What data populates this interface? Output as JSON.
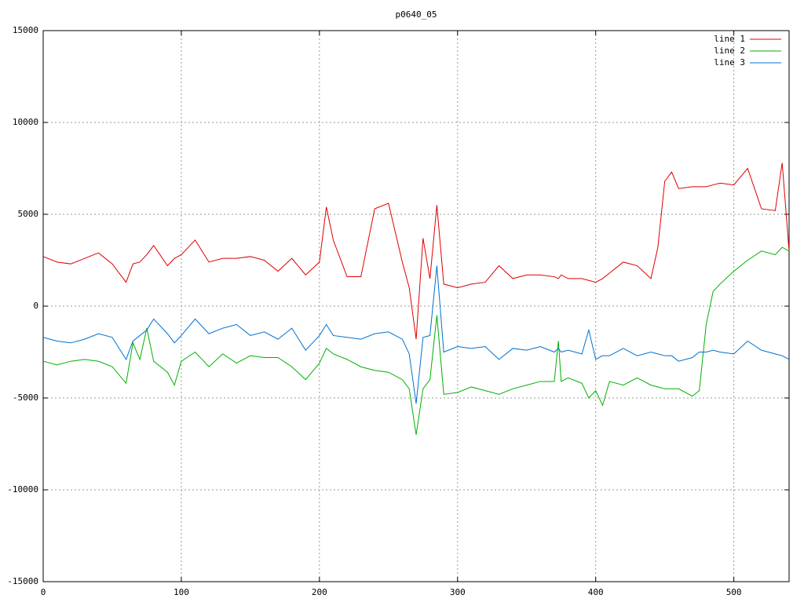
{
  "chart_data": {
    "type": "line",
    "title": "p0640_05",
    "x": [
      0,
      10,
      20,
      30,
      40,
      50,
      60,
      65,
      70,
      75,
      80,
      90,
      95,
      100,
      110,
      120,
      130,
      140,
      150,
      160,
      170,
      180,
      190,
      200,
      205,
      210,
      220,
      230,
      240,
      250,
      260,
      265,
      270,
      275,
      280,
      285,
      290,
      300,
      310,
      320,
      330,
      340,
      350,
      360,
      370,
      373,
      375,
      380,
      390,
      395,
      400,
      405,
      410,
      420,
      430,
      440,
      445,
      450,
      455,
      460,
      470,
      475,
      480,
      485,
      490,
      500,
      510,
      520,
      530,
      535,
      540
    ],
    "series": [
      {
        "name": "line 1",
        "color": "#dd0000",
        "values": [
          2700,
          2400,
          2300,
          2600,
          2900,
          2300,
          1300,
          2300,
          2400,
          2800,
          3300,
          2200,
          2600,
          2800,
          3600,
          2400,
          2600,
          2600,
          2700,
          2500,
          1900,
          2600,
          1700,
          2400,
          5400,
          3600,
          1600,
          1600,
          5300,
          5600,
          2400,
          1000,
          -1800,
          3700,
          1500,
          5500,
          1200,
          1000,
          1200,
          1300,
          2200,
          1500,
          1700,
          1700,
          1600,
          1500,
          1700,
          1500,
          1500,
          1400,
          1300,
          1500,
          1800,
          2400,
          2200,
          1500,
          3200,
          6800,
          7300,
          6400,
          6500,
          6500,
          6500,
          6600,
          6700,
          6600,
          7500,
          5300,
          5200,
          7800,
          3000
        ]
      },
      {
        "name": "line 2",
        "color": "#00b000",
        "values": [
          -3000,
          -3200,
          -3000,
          -2900,
          -3000,
          -3300,
          -4200,
          -2000,
          -2900,
          -1200,
          -3000,
          -3600,
          -4300,
          -3000,
          -2500,
          -3300,
          -2600,
          -3100,
          -2700,
          -2800,
          -2800,
          -3300,
          -4000,
          -3100,
          -2300,
          -2600,
          -2900,
          -3300,
          -3500,
          -3600,
          -4000,
          -4500,
          -7000,
          -4500,
          -4000,
          -500,
          -4800,
          -4700,
          -4400,
          -4600,
          -4800,
          -4500,
          -4300,
          -4100,
          -4100,
          -1900,
          -4100,
          -3900,
          -4200,
          -5000,
          -4600,
          -5400,
          -4100,
          -4300,
          -3900,
          -4300,
          -4400,
          -4500,
          -4500,
          -4500,
          -4900,
          -4600,
          -1000,
          800,
          1200,
          1900,
          2500,
          3000,
          2800,
          3200,
          3000
        ]
      },
      {
        "name": "line 3",
        "color": "#0070d0",
        "values": [
          -1700,
          -1900,
          -2000,
          -1800,
          -1500,
          -1700,
          -2900,
          -1900,
          -1600,
          -1300,
          -700,
          -1500,
          -2000,
          -1600,
          -700,
          -1500,
          -1200,
          -1000,
          -1600,
          -1400,
          -1800,
          -1200,
          -2400,
          -1600,
          -1000,
          -1600,
          -1700,
          -1800,
          -1500,
          -1400,
          -1800,
          -2600,
          -5300,
          -1700,
          -1600,
          2200,
          -2500,
          -2200,
          -2300,
          -2200,
          -2900,
          -2300,
          -2400,
          -2200,
          -2500,
          -2300,
          -2500,
          -2400,
          -2600,
          -1300,
          -2900,
          -2700,
          -2700,
          -2300,
          -2700,
          -2500,
          -2600,
          -2700,
          -2700,
          -3000,
          -2800,
          -2500,
          -2500,
          -2400,
          -2500,
          -2600,
          -1900,
          -2400,
          -2600,
          -2700,
          -2900
        ]
      }
    ],
    "xlim": [
      0,
      540
    ],
    "xticks": [
      0,
      100,
      200,
      300,
      400,
      500
    ],
    "ylim": [
      -15000,
      15000
    ],
    "yticks": [
      -15000,
      -10000,
      -5000,
      0,
      5000,
      10000,
      15000
    ],
    "grid": true,
    "legend": "top-right"
  }
}
